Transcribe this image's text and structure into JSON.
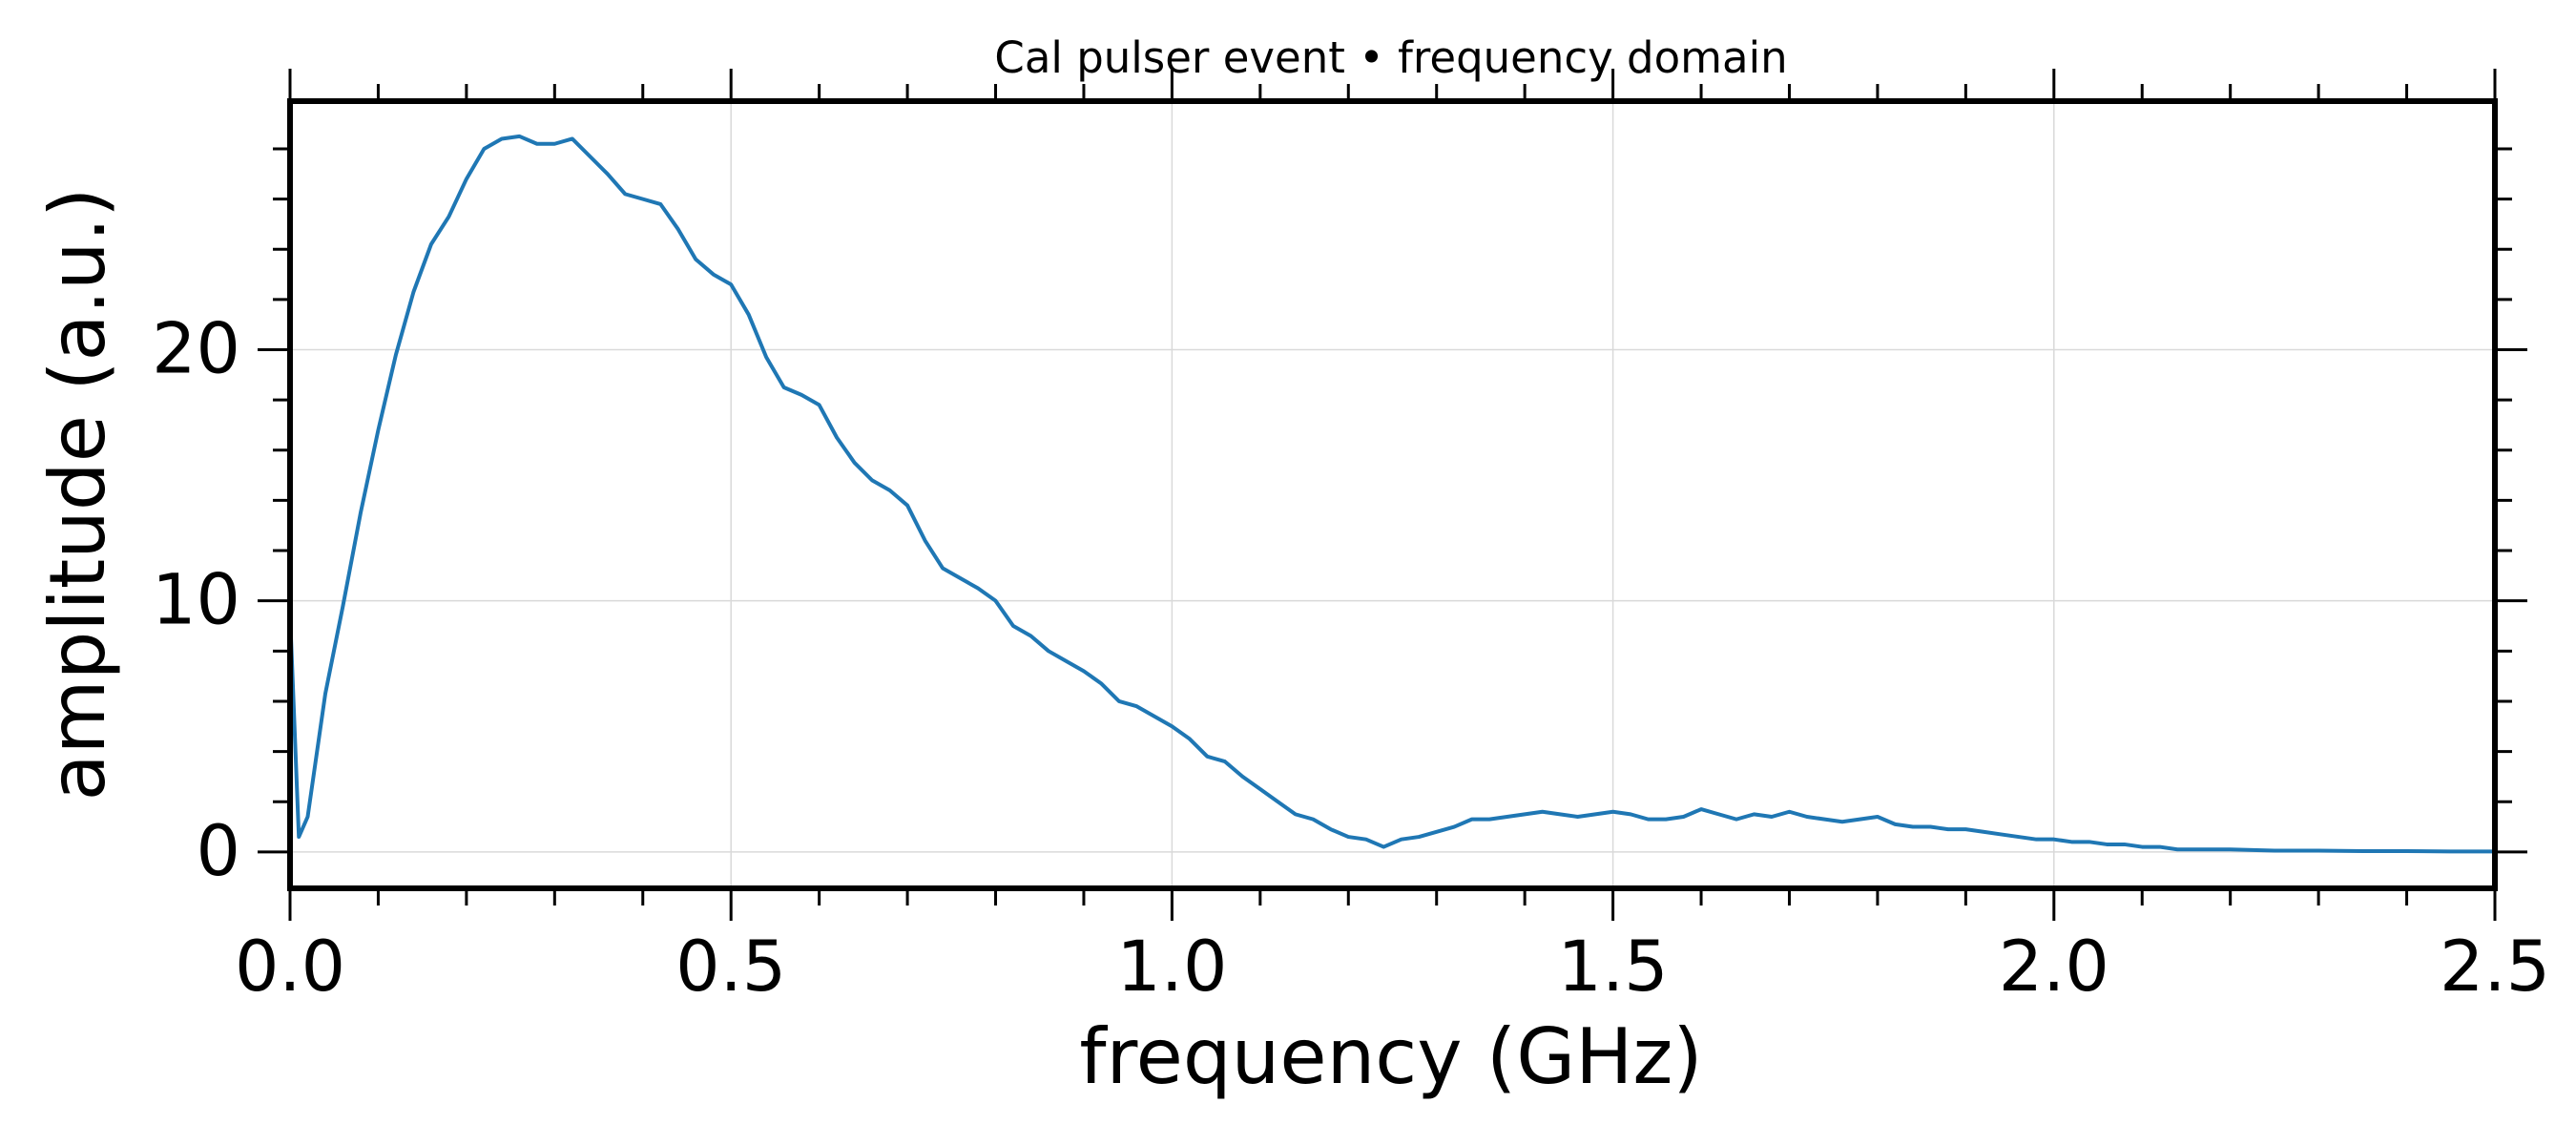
{
  "chart_data": {
    "type": "line",
    "title": "Cal pulser event • frequency domain",
    "xlabel": "frequency (GHz)",
    "ylabel": "amplitude (a.u.)",
    "x": [
      0,
      0.01,
      0.02,
      0.04,
      0.06,
      0.08,
      0.1,
      0.12,
      0.14,
      0.16,
      0.18,
      0.2,
      0.22,
      0.24,
      0.26,
      0.28,
      0.3,
      0.32,
      0.34,
      0.36,
      0.38,
      0.4,
      0.42,
      0.44,
      0.46,
      0.48,
      0.5,
      0.52,
      0.54,
      0.56,
      0.58,
      0.6,
      0.62,
      0.64,
      0.66,
      0.68,
      0.7,
      0.72,
      0.74,
      0.76,
      0.78,
      0.8,
      0.82,
      0.84,
      0.86,
      0.88,
      0.9,
      0.92,
      0.94,
      0.96,
      0.98,
      1.0,
      1.02,
      1.04,
      1.06,
      1.08,
      1.1,
      1.12,
      1.14,
      1.16,
      1.18,
      1.2,
      1.22,
      1.24,
      1.26,
      1.28,
      1.3,
      1.32,
      1.34,
      1.36,
      1.38,
      1.4,
      1.42,
      1.44,
      1.46,
      1.48,
      1.5,
      1.52,
      1.54,
      1.56,
      1.58,
      1.6,
      1.62,
      1.64,
      1.66,
      1.68,
      1.7,
      1.72,
      1.74,
      1.76,
      1.78,
      1.8,
      1.82,
      1.84,
      1.86,
      1.88,
      1.9,
      1.92,
      1.94,
      1.96,
      1.98,
      2.0,
      2.02,
      2.04,
      2.06,
      2.08,
      2.1,
      2.12,
      2.14,
      2.16,
      2.18,
      2.2,
      2.25,
      2.3,
      2.35,
      2.4,
      2.45,
      2.5
    ],
    "series": [
      {
        "name": "amplitude",
        "color": "#1f77b4",
        "values": [
          9.5,
          0.6,
          1.4,
          6.3,
          9.8,
          13.5,
          16.8,
          19.8,
          22.3,
          24.2,
          25.3,
          26.8,
          28.0,
          28.4,
          28.5,
          28.2,
          28.2,
          28.4,
          27.7,
          27.0,
          26.2,
          26.0,
          25.8,
          24.8,
          23.6,
          23.0,
          22.6,
          21.4,
          19.7,
          18.5,
          18.2,
          17.8,
          16.5,
          15.5,
          14.8,
          14.4,
          13.8,
          12.4,
          11.3,
          10.9,
          10.5,
          10.0,
          9.0,
          8.6,
          8.0,
          7.6,
          7.2,
          6.7,
          6.0,
          5.8,
          5.4,
          5.0,
          4.5,
          3.8,
          3.6,
          3.0,
          2.5,
          2.0,
          1.5,
          1.3,
          0.9,
          0.6,
          0.5,
          0.2,
          0.5,
          0.6,
          0.8,
          1.0,
          1.3,
          1.3,
          1.4,
          1.5,
          1.6,
          1.5,
          1.4,
          1.5,
          1.6,
          1.5,
          1.3,
          1.3,
          1.4,
          1.7,
          1.5,
          1.3,
          1.5,
          1.4,
          1.6,
          1.4,
          1.3,
          1.2,
          1.3,
          1.4,
          1.1,
          1.0,
          1.0,
          0.9,
          0.9,
          0.8,
          0.7,
          0.6,
          0.5,
          0.5,
          0.4,
          0.4,
          0.3,
          0.3,
          0.2,
          0.2,
          0.1,
          0.1,
          0.1,
          0.1,
          0.05,
          0.05,
          0.03,
          0.03,
          0.02,
          0.02
        ]
      }
    ],
    "xlim": [
      0,
      2.5
    ],
    "ylim": [
      -1.45,
      29.9
    ],
    "xticks": [
      {
        "value": 0,
        "label": "0.0"
      },
      0.5,
      {
        "value": 1,
        "label": "1.0"
      },
      1.5,
      {
        "value": 2,
        "label": "2.0"
      },
      2.5
    ],
    "yticks": [
      0,
      10,
      20
    ],
    "xminorticks": [
      0.1,
      0.2,
      0.3,
      0.4,
      0.6,
      0.7,
      0.8,
      0.9,
      1.1,
      1.2,
      1.3,
      1.4,
      1.6,
      1.7,
      1.8,
      1.9,
      2.1,
      2.2,
      2.3,
      2.4
    ],
    "yminorticks": [
      2,
      4,
      6,
      8,
      12,
      14,
      16,
      18,
      22,
      24,
      26,
      28
    ],
    "grid": true
  }
}
